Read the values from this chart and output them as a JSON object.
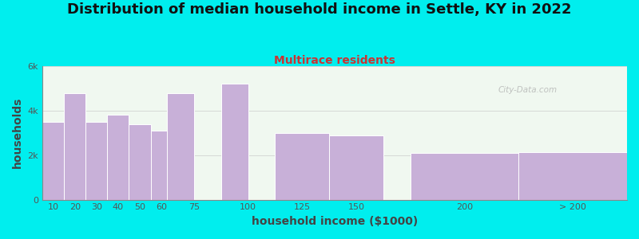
{
  "title": "Distribution of median household income in Settle, KY in 2022",
  "subtitle": "Multirace residents",
  "xlabel": "household income ($1000)",
  "ylabel": "households",
  "bar_color": "#c8b0d8",
  "bar_edge_color": "#ffffff",
  "background_color": "#00eeee",
  "plot_bg_color": "#f0f8f0",
  "bin_lefts": [
    5,
    15,
    25,
    35,
    45,
    55,
    62.5,
    87.5,
    112.5,
    137.5,
    175,
    225
  ],
  "bin_widths": [
    10,
    10,
    10,
    10,
    10,
    10,
    12.5,
    12.5,
    25,
    25,
    50,
    50
  ],
  "values": [
    3500,
    4800,
    3500,
    3800,
    3400,
    3100,
    4800,
    5200,
    3000,
    2900,
    2100,
    2150
  ],
  "xtick_positions": [
    10,
    20,
    30,
    40,
    50,
    60,
    75,
    100,
    125,
    150,
    200
  ],
  "xtick_extra_pos": 250,
  "xtick_extra_label": "> 200",
  "xtick_labels": [
    "10",
    "20",
    "30",
    "40",
    "50",
    "60",
    "75",
    "100",
    "125",
    "150",
    "200"
  ],
  "ylim": [
    0,
    6000
  ],
  "yticks": [
    0,
    2000,
    4000,
    6000
  ],
  "ytick_labels": [
    "0",
    "2k",
    "4k",
    "6k"
  ],
  "title_fontsize": 13,
  "subtitle_fontsize": 10,
  "axis_label_fontsize": 10,
  "tick_fontsize": 8,
  "watermark_text": "City-Data.com",
  "title_color": "#111111",
  "subtitle_color": "#cc3333",
  "axis_label_color": "#444444",
  "tick_color": "#555555",
  "xlim": [
    5,
    275
  ]
}
